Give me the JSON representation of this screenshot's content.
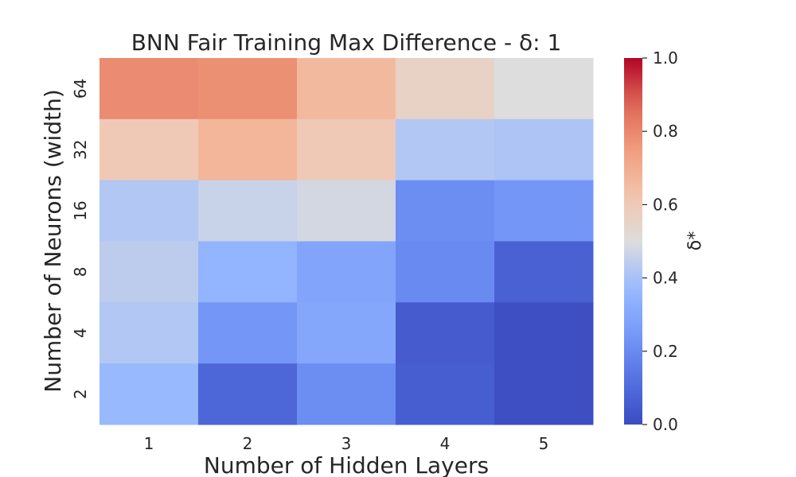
{
  "chart_data": {
    "type": "heatmap",
    "title": "BNN Fair Training Max Difference - δ: 1",
    "xlabel": "Number of Hidden Layers",
    "ylabel": "Number of Neurons (width)",
    "x_categories": [
      "1",
      "2",
      "3",
      "4",
      "5"
    ],
    "y_categories": [
      "64",
      "32",
      "16",
      "8",
      "4",
      "2"
    ],
    "values": [
      [
        0.79,
        0.78,
        0.66,
        0.56,
        0.5
      ],
      [
        0.6,
        0.67,
        0.6,
        0.42,
        0.41
      ],
      [
        0.42,
        0.46,
        0.48,
        0.21,
        0.24
      ],
      [
        0.44,
        0.35,
        0.29,
        0.2,
        0.07
      ],
      [
        0.42,
        0.24,
        0.3,
        0.05,
        0.01
      ],
      [
        0.37,
        0.09,
        0.21,
        0.06,
        0.01
      ]
    ],
    "colorbar": {
      "label": "δ*",
      "range": [
        0.0,
        1.0
      ],
      "ticks": [
        "0.0",
        "0.2",
        "0.4",
        "0.6",
        "0.8",
        "1.0"
      ],
      "colormap": "coolwarm"
    }
  }
}
